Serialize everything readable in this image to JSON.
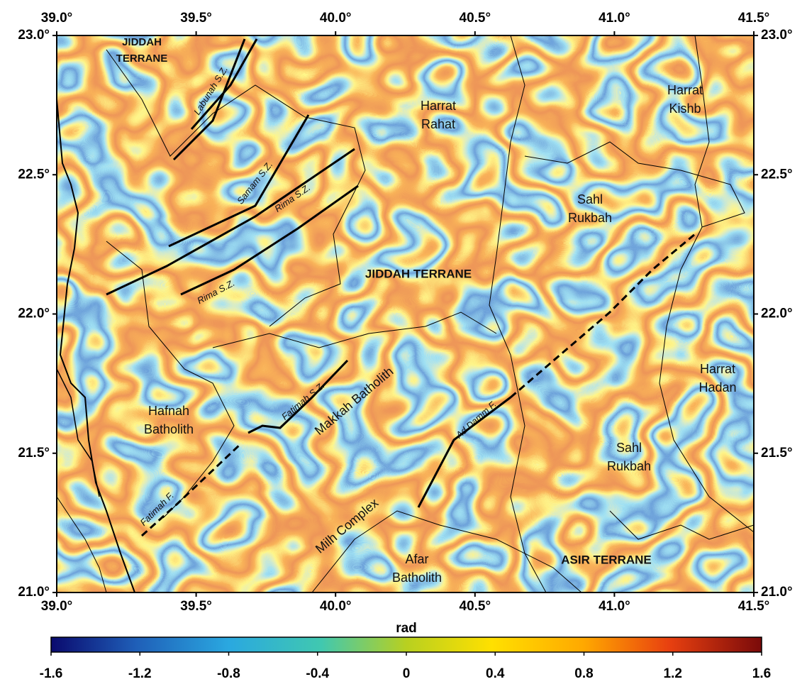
{
  "map": {
    "xticks": [
      {
        "value": 39,
        "label": "39.0°"
      },
      {
        "value": 39.5,
        "label": "39.5°"
      },
      {
        "value": 40,
        "label": "40.0°"
      },
      {
        "value": 40.5,
        "label": "40.5°"
      },
      {
        "value": 41,
        "label": "41.0°"
      },
      {
        "value": 41.5,
        "label": "41.5°"
      }
    ],
    "yticks": [
      {
        "value": 21,
        "label": "21.0°"
      },
      {
        "value": 21.5,
        "label": "21.5°"
      },
      {
        "value": 22,
        "label": "22.0°"
      },
      {
        "value": 22.5,
        "label": "22.5°"
      },
      {
        "value": 23,
        "label": "23.0°"
      }
    ],
    "labels": [
      {
        "lines": [
          "JIDDAH",
          "TERRANE"
        ]
      },
      {
        "lines": [
          "Labunah S.Z."
        ]
      },
      {
        "lines": [
          "Harrat",
          "Rahat"
        ]
      },
      {
        "lines": [
          "Harrat",
          "Kishb"
        ]
      },
      {
        "lines": [
          "Samam S.Z."
        ]
      },
      {
        "lines": [
          "Rima S.Z."
        ]
      },
      {
        "lines": [
          "Sahl",
          "Rukbah"
        ]
      },
      {
        "lines": [
          "Rima S.Z."
        ]
      },
      {
        "lines": [
          "JIDDAH TERRANE"
        ]
      },
      {
        "lines": [
          "Harrat",
          "Hadan"
        ]
      },
      {
        "lines": [
          "Hafnah",
          "Batholith"
        ]
      },
      {
        "lines": [
          "Fatimah S.Z."
        ]
      },
      {
        "lines": [
          "Makkah Batholith"
        ]
      },
      {
        "lines": [
          "Ad Damm F."
        ]
      },
      {
        "lines": [
          "Sahl",
          "Rukbah"
        ]
      },
      {
        "lines": [
          "Fatimah F."
        ]
      },
      {
        "lines": [
          "Milh Complex"
        ]
      },
      {
        "lines": [
          "Afar",
          "Batholith"
        ]
      },
      {
        "lines": [
          "ASIR TERRANE"
        ]
      }
    ]
  },
  "colorbar": {
    "title": "rad",
    "lim": [
      -1.6,
      1.6
    ],
    "ticks": [
      -1.6,
      -1.2,
      -0.8,
      -0.4,
      0,
      0.4,
      0.8,
      1.2,
      1.6
    ]
  }
}
